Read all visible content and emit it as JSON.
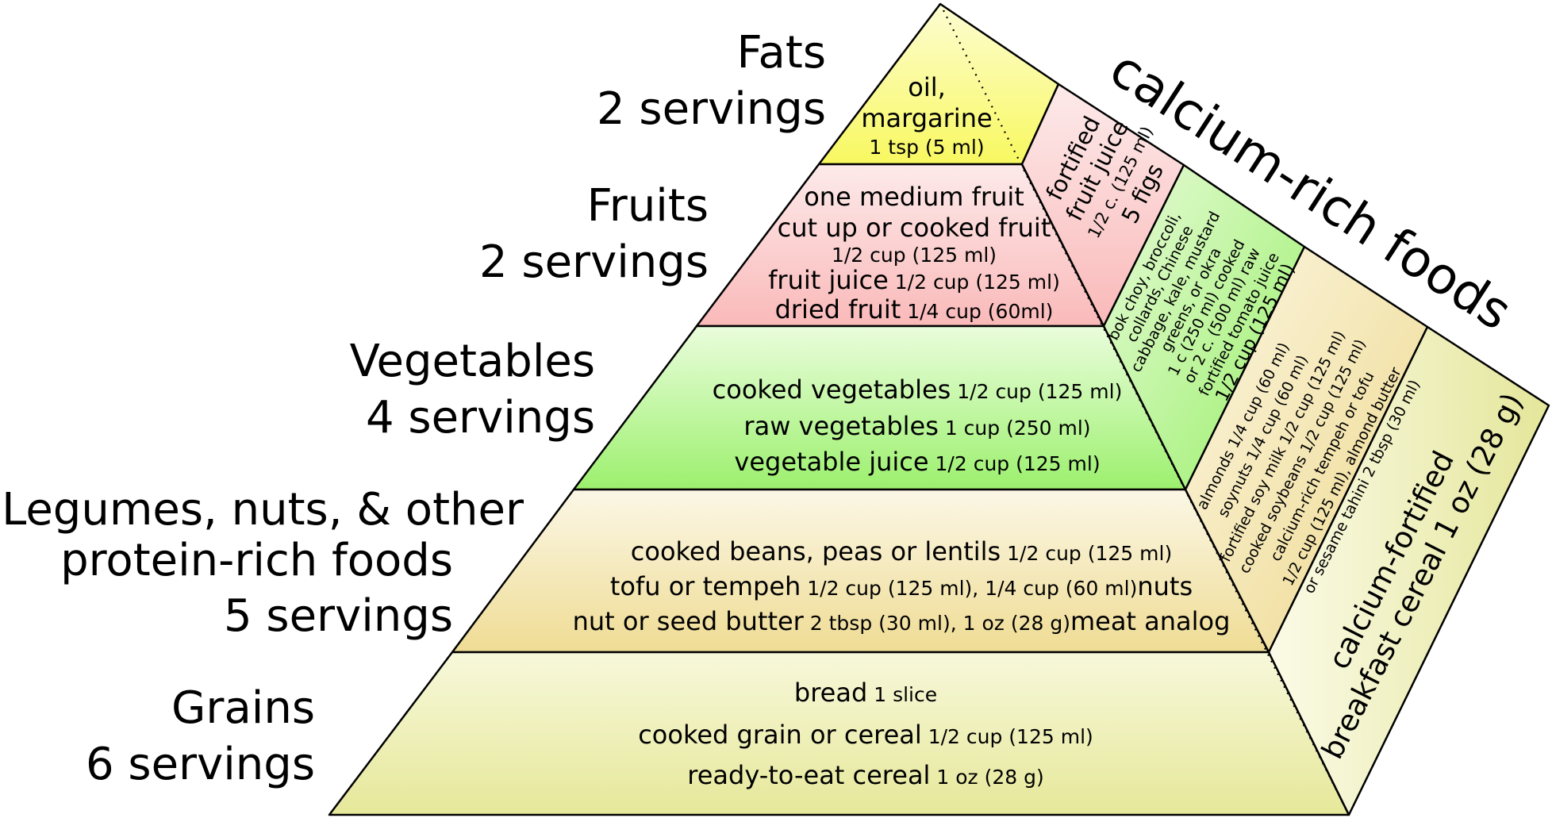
{
  "title": "calcium-rich foods",
  "colors": {
    "grains": "#eef0b4",
    "legumes": "#f3e4a9",
    "vegetables": "#a6f47c",
    "fruits": "#fbc7c7",
    "fats": "#fbfb7b",
    "side": "#f2f2d2"
  },
  "groups": [
    {
      "key": "fats",
      "name": "Fats",
      "servings": "2 servings",
      "items": [
        {
          "main": "oil,",
          "portion": ""
        },
        {
          "main": "margarine",
          "portion": ""
        },
        {
          "main": "",
          "portion": "1 tsp (5 ml)"
        }
      ]
    },
    {
      "key": "fruits",
      "name": "Fruits",
      "servings": "2 servings",
      "items": [
        {
          "main": "one medium fruit",
          "portion": ""
        },
        {
          "main": "cut up or cooked fruit",
          "portion": ""
        },
        {
          "main": "",
          "portion": "1/2 cup (125 ml)"
        },
        {
          "main": "fruit juice",
          "portion": " 1/2 cup (125 ml)"
        },
        {
          "main": "dried fruit",
          "portion": " 1/4 cup (60ml)"
        }
      ]
    },
    {
      "key": "vegetables",
      "name": "Vegetables",
      "servings": "4 servings",
      "items": [
        {
          "main": "cooked vegetables",
          "portion": " 1/2 cup (125 ml)"
        },
        {
          "main": "raw vegetables",
          "portion": " 1 cup (250 ml)"
        },
        {
          "main": "vegetable juice",
          "portion": " 1/2 cup (125 ml)"
        }
      ]
    },
    {
      "key": "legumes",
      "name_lines": [
        "Legumes, nuts, & other",
        "protein-rich foods"
      ],
      "servings": "5 servings",
      "items": [
        {
          "main": "cooked beans, peas or lentils",
          "portion": " 1/2 cup (125 ml)"
        },
        {
          "main": "tofu or tempeh",
          "portion": " 1/2 cup (125 ml),  1/4 cup (60 ml)",
          "tail": "nuts"
        },
        {
          "main": "nut or seed butter",
          "portion": " 2 tbsp (30 ml),  1 oz (28 g)",
          "tail": "meat analog"
        }
      ]
    },
    {
      "key": "grains",
      "name": "Grains",
      "servings": "6 servings",
      "items": [
        {
          "main": "bread",
          "portion": " 1 slice"
        },
        {
          "main": "cooked grain or cereal",
          "portion": " 1/2 cup (125 ml)"
        },
        {
          "main": "ready-to-eat cereal",
          "portion": " 1 oz (28 g)"
        }
      ]
    }
  ],
  "calcium": {
    "fruits": [
      "fortified",
      "fruit juice",
      "1/2 c. (125 ml)",
      "5 figs"
    ],
    "vegetables": [
      "bok choy, broccoli,",
      "collards, Chinese",
      "cabbage, kale, mustard",
      "greens, or okra",
      "1 c (250 ml) cooked",
      "or 2 c. (500 ml) raw",
      "fortified tomato juice",
      "1/2 cup (125 ml)"
    ],
    "legumes": [
      "almonds 1/4 cup (60 ml)",
      "soynuts 1/4 cup (60 ml)",
      "fortified soy milk 1/2 cup (125 ml)",
      "cooked soybeans 1/2 cup (125 ml)",
      "calcium-rich tempeh or tofu",
      "1/2 cup (125 ml), almond butter",
      "or sesame tahini 2 tbsp (30 ml)"
    ],
    "grains": [
      "calcium-fortified",
      "breakfast cereal 1 oz (28 g)"
    ]
  }
}
